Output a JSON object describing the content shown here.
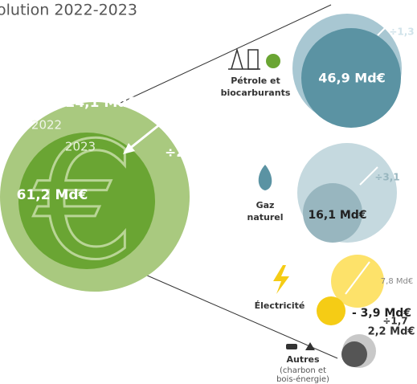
{
  "title": "olution 2022-2023",
  "total": {
    "value_2022": "124,1 Md€",
    "year_2022": "2022",
    "year_2023": "2023",
    "ratio": "÷2",
    "value_2023": "61,2 Md€"
  },
  "nodes": [
    {
      "label": [
        "Pétrole et",
        "biocarburants"
      ],
      "value": "46,9 Md€",
      "ratio": "÷1,3"
    },
    {
      "label": [
        "Gaz",
        "naturel"
      ],
      "value": "16,1 Md€",
      "ratio": "÷3,1"
    },
    {
      "label": [
        "Électricité"
      ],
      "value_2022": "7,8 Md€",
      "value": "- 3,9 Md€"
    },
    {
      "label": [
        "Autres"
      ],
      "sublabel": [
        "(charbon et",
        "bois-énergie)"
      ],
      "ratio": "÷1,7",
      "value": "2,2 Md€"
    }
  ]
}
